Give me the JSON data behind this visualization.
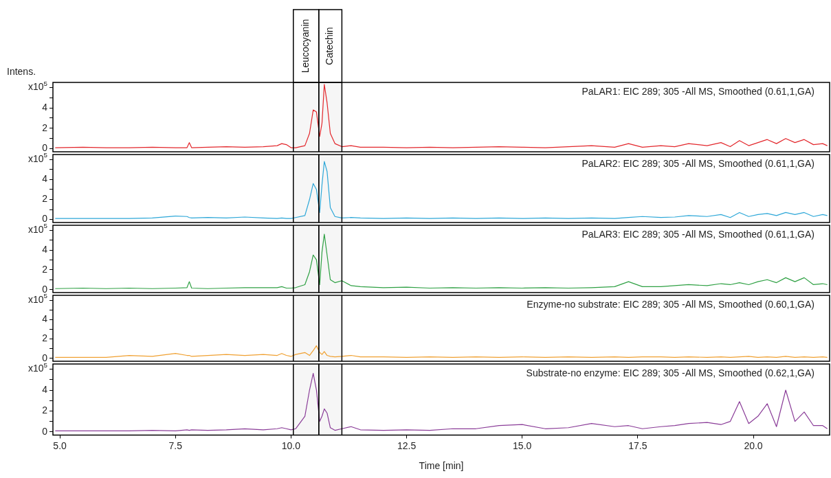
{
  "chart_data": [
    {
      "type": "line",
      "ylabel": "Intens.",
      "tick_labels": "y",
      "xlim": [
        4.85,
        21.65
      ],
      "ylim": [
        -0.3,
        6.5
      ],
      "yticks": [
        0,
        {
          "value": 1,
          "label": null
        },
        2,
        {
          "value": 3,
          "label": null
        },
        4,
        {
          "value": 5,
          "label": null
        },
        {
          "value": 6,
          "label": "x10$^{5}$"
        }
      ],
      "bands": [
        {
          "axis": "x",
          "from": 10.05,
          "to": 10.6,
          "label": "Leucocyanin"
        },
        {
          "axis": "x",
          "from": 10.6,
          "to": 11.1,
          "label": "Catechin"
        }
      ],
      "annotations": [
        "PaLAR1: EIC 289; 305 -All MS, Smoothed (0.61,1,GA)"
      ],
      "x": [
        4.9,
        5.5,
        6.0,
        6.5,
        7.0,
        7.5,
        7.75,
        7.8,
        7.85,
        8.2,
        8.6,
        9.0,
        9.4,
        9.7,
        9.8,
        9.9,
        10.0,
        10.1,
        10.3,
        10.4,
        10.48,
        10.55,
        10.62,
        10.67,
        10.72,
        10.78,
        10.85,
        10.95,
        11.1,
        11.3,
        11.5,
        12.0,
        12.5,
        13.0,
        13.5,
        14.0,
        14.5,
        15.0,
        15.5,
        16.0,
        16.5,
        17.0,
        17.3,
        17.6,
        18.0,
        18.3,
        18.6,
        19.0,
        19.3,
        19.5,
        19.7,
        19.9,
        20.1,
        20.3,
        20.5,
        20.7,
        20.9,
        21.1,
        21.3,
        21.5,
        21.6
      ],
      "series": [
        {
          "color": "#e3262b",
          "values": [
            0.1,
            0.15,
            0.1,
            0.1,
            0.15,
            0.1,
            0.1,
            0.6,
            0.1,
            0.15,
            0.2,
            0.15,
            0.2,
            0.3,
            0.5,
            0.4,
            0.1,
            0.1,
            0.3,
            1.5,
            3.8,
            3.6,
            1.2,
            2.5,
            6.3,
            4.5,
            1.5,
            0.5,
            0.2,
            0.3,
            0.15,
            0.15,
            0.1,
            0.15,
            0.1,
            0.15,
            0.2,
            0.15,
            0.1,
            0.2,
            0.3,
            0.15,
            0.5,
            0.15,
            0.3,
            0.2,
            0.5,
            0.3,
            0.6,
            0.2,
            0.8,
            0.3,
            0.6,
            0.9,
            0.5,
            1.0,
            0.6,
            0.9,
            0.4,
            0.5,
            0.3
          ]
        }
      ]
    },
    {
      "type": "line",
      "tick_labels": "y",
      "xlim": [
        4.85,
        21.65
      ],
      "ylim": [
        -0.3,
        6.5
      ],
      "yticks": [
        0,
        {
          "value": 1,
          "label": null
        },
        2,
        {
          "value": 3,
          "label": null
        },
        4,
        {
          "value": 5,
          "label": null
        },
        {
          "value": 6,
          "label": "x10$^{5}$"
        }
      ],
      "bands": [
        {
          "axis": "x",
          "from": 10.05,
          "to": 10.6
        },
        {
          "axis": "x",
          "from": 10.6,
          "to": 11.1
        }
      ],
      "annotations": [
        "PaLAR2: EIC 289; 305 -All MS, Smoothed (0.61,1,GA)"
      ],
      "x": [
        4.9,
        5.5,
        6.0,
        6.5,
        7.0,
        7.5,
        7.75,
        7.8,
        7.85,
        8.2,
        8.6,
        9.0,
        9.4,
        9.7,
        9.8,
        9.9,
        10.0,
        10.1,
        10.3,
        10.4,
        10.48,
        10.55,
        10.62,
        10.67,
        10.72,
        10.78,
        10.85,
        10.95,
        11.1,
        11.3,
        11.5,
        12.0,
        12.5,
        13.0,
        13.5,
        14.0,
        14.5,
        15.0,
        15.5,
        16.0,
        16.5,
        17.0,
        17.3,
        17.6,
        18.0,
        18.3,
        18.6,
        19.0,
        19.3,
        19.5,
        19.7,
        19.9,
        20.1,
        20.3,
        20.5,
        20.7,
        20.9,
        21.1,
        21.3,
        21.5,
        21.6
      ],
      "series": [
        {
          "color": "#2ca7d8",
          "values": [
            0.1,
            0.1,
            0.1,
            0.1,
            0.15,
            0.35,
            0.3,
            0.2,
            0.15,
            0.2,
            0.15,
            0.25,
            0.15,
            0.1,
            0.15,
            0.1,
            0.1,
            0.2,
            0.4,
            2.0,
            3.6,
            3.0,
            0.7,
            3.5,
            5.8,
            4.8,
            1.2,
            0.3,
            0.15,
            0.2,
            0.15,
            0.1,
            0.15,
            0.1,
            0.15,
            0.1,
            0.15,
            0.1,
            0.15,
            0.1,
            0.15,
            0.1,
            0.2,
            0.3,
            0.2,
            0.25,
            0.4,
            0.3,
            0.5,
            0.2,
            0.7,
            0.3,
            0.5,
            0.6,
            0.4,
            0.7,
            0.5,
            0.7,
            0.3,
            0.5,
            0.4
          ]
        }
      ]
    },
    {
      "type": "line",
      "tick_labels": "y",
      "xlim": [
        4.85,
        21.65
      ],
      "ylim": [
        -0.3,
        6.5
      ],
      "yticks": [
        0,
        {
          "value": 1,
          "label": null
        },
        2,
        {
          "value": 3,
          "label": null
        },
        4,
        {
          "value": 5,
          "label": null
        },
        {
          "value": 6,
          "label": "x10$^{5}$"
        }
      ],
      "bands": [
        {
          "axis": "x",
          "from": 10.05,
          "to": 10.6
        },
        {
          "axis": "x",
          "from": 10.6,
          "to": 11.1
        }
      ],
      "annotations": [
        "PaLAR3: EIC 289; 305 -All MS, Smoothed (0.61,1,GA)"
      ],
      "x": [
        4.9,
        5.5,
        6.0,
        6.5,
        7.0,
        7.5,
        7.75,
        7.8,
        7.85,
        8.2,
        8.6,
        9.0,
        9.4,
        9.7,
        9.8,
        9.9,
        10.0,
        10.1,
        10.3,
        10.4,
        10.48,
        10.55,
        10.62,
        10.67,
        10.72,
        10.78,
        10.85,
        10.95,
        11.1,
        11.3,
        11.5,
        12.0,
        12.5,
        13.0,
        13.5,
        14.0,
        14.5,
        15.0,
        15.5,
        16.0,
        16.5,
        17.0,
        17.3,
        17.6,
        18.0,
        18.3,
        18.6,
        19.0,
        19.3,
        19.5,
        19.7,
        19.9,
        20.1,
        20.3,
        20.5,
        20.7,
        20.9,
        21.1,
        21.3,
        21.5,
        21.6
      ],
      "series": [
        {
          "color": "#2ea043",
          "values": [
            0.1,
            0.15,
            0.1,
            0.15,
            0.1,
            0.15,
            0.2,
            0.8,
            0.15,
            0.1,
            0.15,
            0.2,
            0.2,
            0.2,
            0.3,
            0.15,
            0.15,
            0.2,
            0.5,
            1.8,
            3.5,
            3.0,
            0.5,
            3.8,
            5.6,
            3.5,
            1.0,
            0.7,
            0.9,
            0.4,
            0.3,
            0.2,
            0.25,
            0.15,
            0.2,
            0.15,
            0.2,
            0.15,
            0.2,
            0.15,
            0.2,
            0.3,
            0.8,
            0.3,
            0.3,
            0.4,
            0.5,
            0.4,
            0.6,
            0.5,
            0.7,
            0.5,
            0.8,
            1.0,
            0.7,
            1.2,
            0.8,
            1.2,
            0.5,
            0.6,
            0.5
          ]
        }
      ]
    },
    {
      "type": "line",
      "tick_labels": "y",
      "xlim": [
        4.85,
        21.65
      ],
      "ylim": [
        -0.3,
        6.5
      ],
      "yticks": [
        0,
        {
          "value": 1,
          "label": null
        },
        2,
        {
          "value": 3,
          "label": null
        },
        4,
        {
          "value": 5,
          "label": null
        },
        {
          "value": 6,
          "label": "x10$^{5}$"
        }
      ],
      "bands": [
        {
          "axis": "x",
          "from": 10.05,
          "to": 10.6
        },
        {
          "axis": "x",
          "from": 10.6,
          "to": 11.1
        }
      ],
      "annotations": [
        "Enzyme-no substrate: EIC 289; 305 -All MS, Smoothed (0.60,1,GA)"
      ],
      "x": [
        4.9,
        5.5,
        6.0,
        6.5,
        7.0,
        7.5,
        7.75,
        7.8,
        7.85,
        8.2,
        8.6,
        9.0,
        9.4,
        9.7,
        9.8,
        9.9,
        10.0,
        10.1,
        10.3,
        10.4,
        10.48,
        10.55,
        10.62,
        10.67,
        10.72,
        10.78,
        10.85,
        10.95,
        11.1,
        11.3,
        11.5,
        12.0,
        12.5,
        13.0,
        13.5,
        14.0,
        14.5,
        15.0,
        15.5,
        16.0,
        16.5,
        17.0,
        17.3,
        17.6,
        18.0,
        18.3,
        18.6,
        19.0,
        19.3,
        19.5,
        19.7,
        19.9,
        20.1,
        20.3,
        20.5,
        20.7,
        20.9,
        21.1,
        21.3,
        21.5,
        21.6
      ],
      "series": [
        {
          "color": "#f0a030",
          "values": [
            0.1,
            0.1,
            0.1,
            0.3,
            0.2,
            0.5,
            0.3,
            0.3,
            0.2,
            0.3,
            0.4,
            0.3,
            0.4,
            0.3,
            0.5,
            0.3,
            0.2,
            0.4,
            0.6,
            0.3,
            0.8,
            1.3,
            0.6,
            0.4,
            0.7,
            0.3,
            0.2,
            0.15,
            0.2,
            0.3,
            0.15,
            0.15,
            0.1,
            0.15,
            0.1,
            0.15,
            0.1,
            0.15,
            0.1,
            0.15,
            0.1,
            0.15,
            0.1,
            0.15,
            0.15,
            0.1,
            0.15,
            0.1,
            0.15,
            0.1,
            0.15,
            0.2,
            0.1,
            0.15,
            0.1,
            0.2,
            0.1,
            0.15,
            0.1,
            0.15,
            0.1
          ]
        }
      ]
    },
    {
      "type": "line",
      "xlabel": "Time [min]",
      "xlim": [
        4.85,
        21.65
      ],
      "xticks": [
        {
          "value": 5,
          "label": "5.0"
        },
        7.5,
        {
          "value": 10,
          "label": "10.0"
        },
        12.5,
        {
          "value": 15,
          "label": "15.0"
        },
        17.5,
        {
          "value": 20,
          "label": "20.0"
        }
      ],
      "ylim": [
        -0.3,
        6.5
      ],
      "yticks": [
        0,
        {
          "value": 1,
          "label": null
        },
        2,
        {
          "value": 3,
          "label": null
        },
        4,
        {
          "value": 5,
          "label": null
        },
        {
          "value": 6,
          "label": "x10$^{5}$"
        }
      ],
      "bands": [
        {
          "axis": "x",
          "from": 10.05,
          "to": 10.6
        },
        {
          "axis": "x",
          "from": 10.6,
          "to": 11.1
        }
      ],
      "annotations": [
        "Substrate-no enzyme: EIC 289; 305 -All MS, Smoothed (0.62,1,GA)"
      ],
      "x": [
        4.9,
        5.5,
        6.0,
        6.5,
        7.0,
        7.5,
        7.75,
        7.8,
        7.85,
        8.2,
        8.6,
        9.0,
        9.4,
        9.7,
        9.8,
        9.9,
        10.0,
        10.1,
        10.3,
        10.4,
        10.48,
        10.55,
        10.62,
        10.67,
        10.72,
        10.78,
        10.85,
        10.95,
        11.1,
        11.3,
        11.5,
        12.0,
        12.5,
        13.0,
        13.5,
        14.0,
        14.5,
        15.0,
        15.5,
        16.0,
        16.5,
        17.0,
        17.3,
        17.6,
        18.0,
        18.3,
        18.6,
        19.0,
        19.3,
        19.5,
        19.7,
        19.9,
        20.1,
        20.3,
        20.5,
        20.7,
        20.9,
        21.1,
        21.3,
        21.5,
        21.6
      ],
      "series": [
        {
          "color": "#8a3c98",
          "values": [
            0.1,
            0.1,
            0.1,
            0.1,
            0.15,
            0.1,
            0.2,
            0.15,
            0.2,
            0.15,
            0.2,
            0.3,
            0.2,
            0.3,
            0.4,
            0.3,
            0.2,
            0.3,
            1.5,
            4.0,
            5.6,
            4.0,
            1.0,
            1.5,
            2.2,
            1.8,
            0.4,
            0.15,
            0.3,
            0.5,
            0.2,
            0.15,
            0.2,
            0.15,
            0.3,
            0.3,
            0.6,
            0.7,
            0.3,
            0.4,
            0.8,
            0.5,
            0.6,
            0.3,
            0.5,
            0.6,
            0.8,
            0.9,
            0.7,
            1.0,
            2.9,
            0.8,
            1.5,
            2.7,
            0.5,
            4.0,
            1.0,
            1.9,
            0.6,
            0.6,
            0.3
          ]
        }
      ]
    }
  ]
}
